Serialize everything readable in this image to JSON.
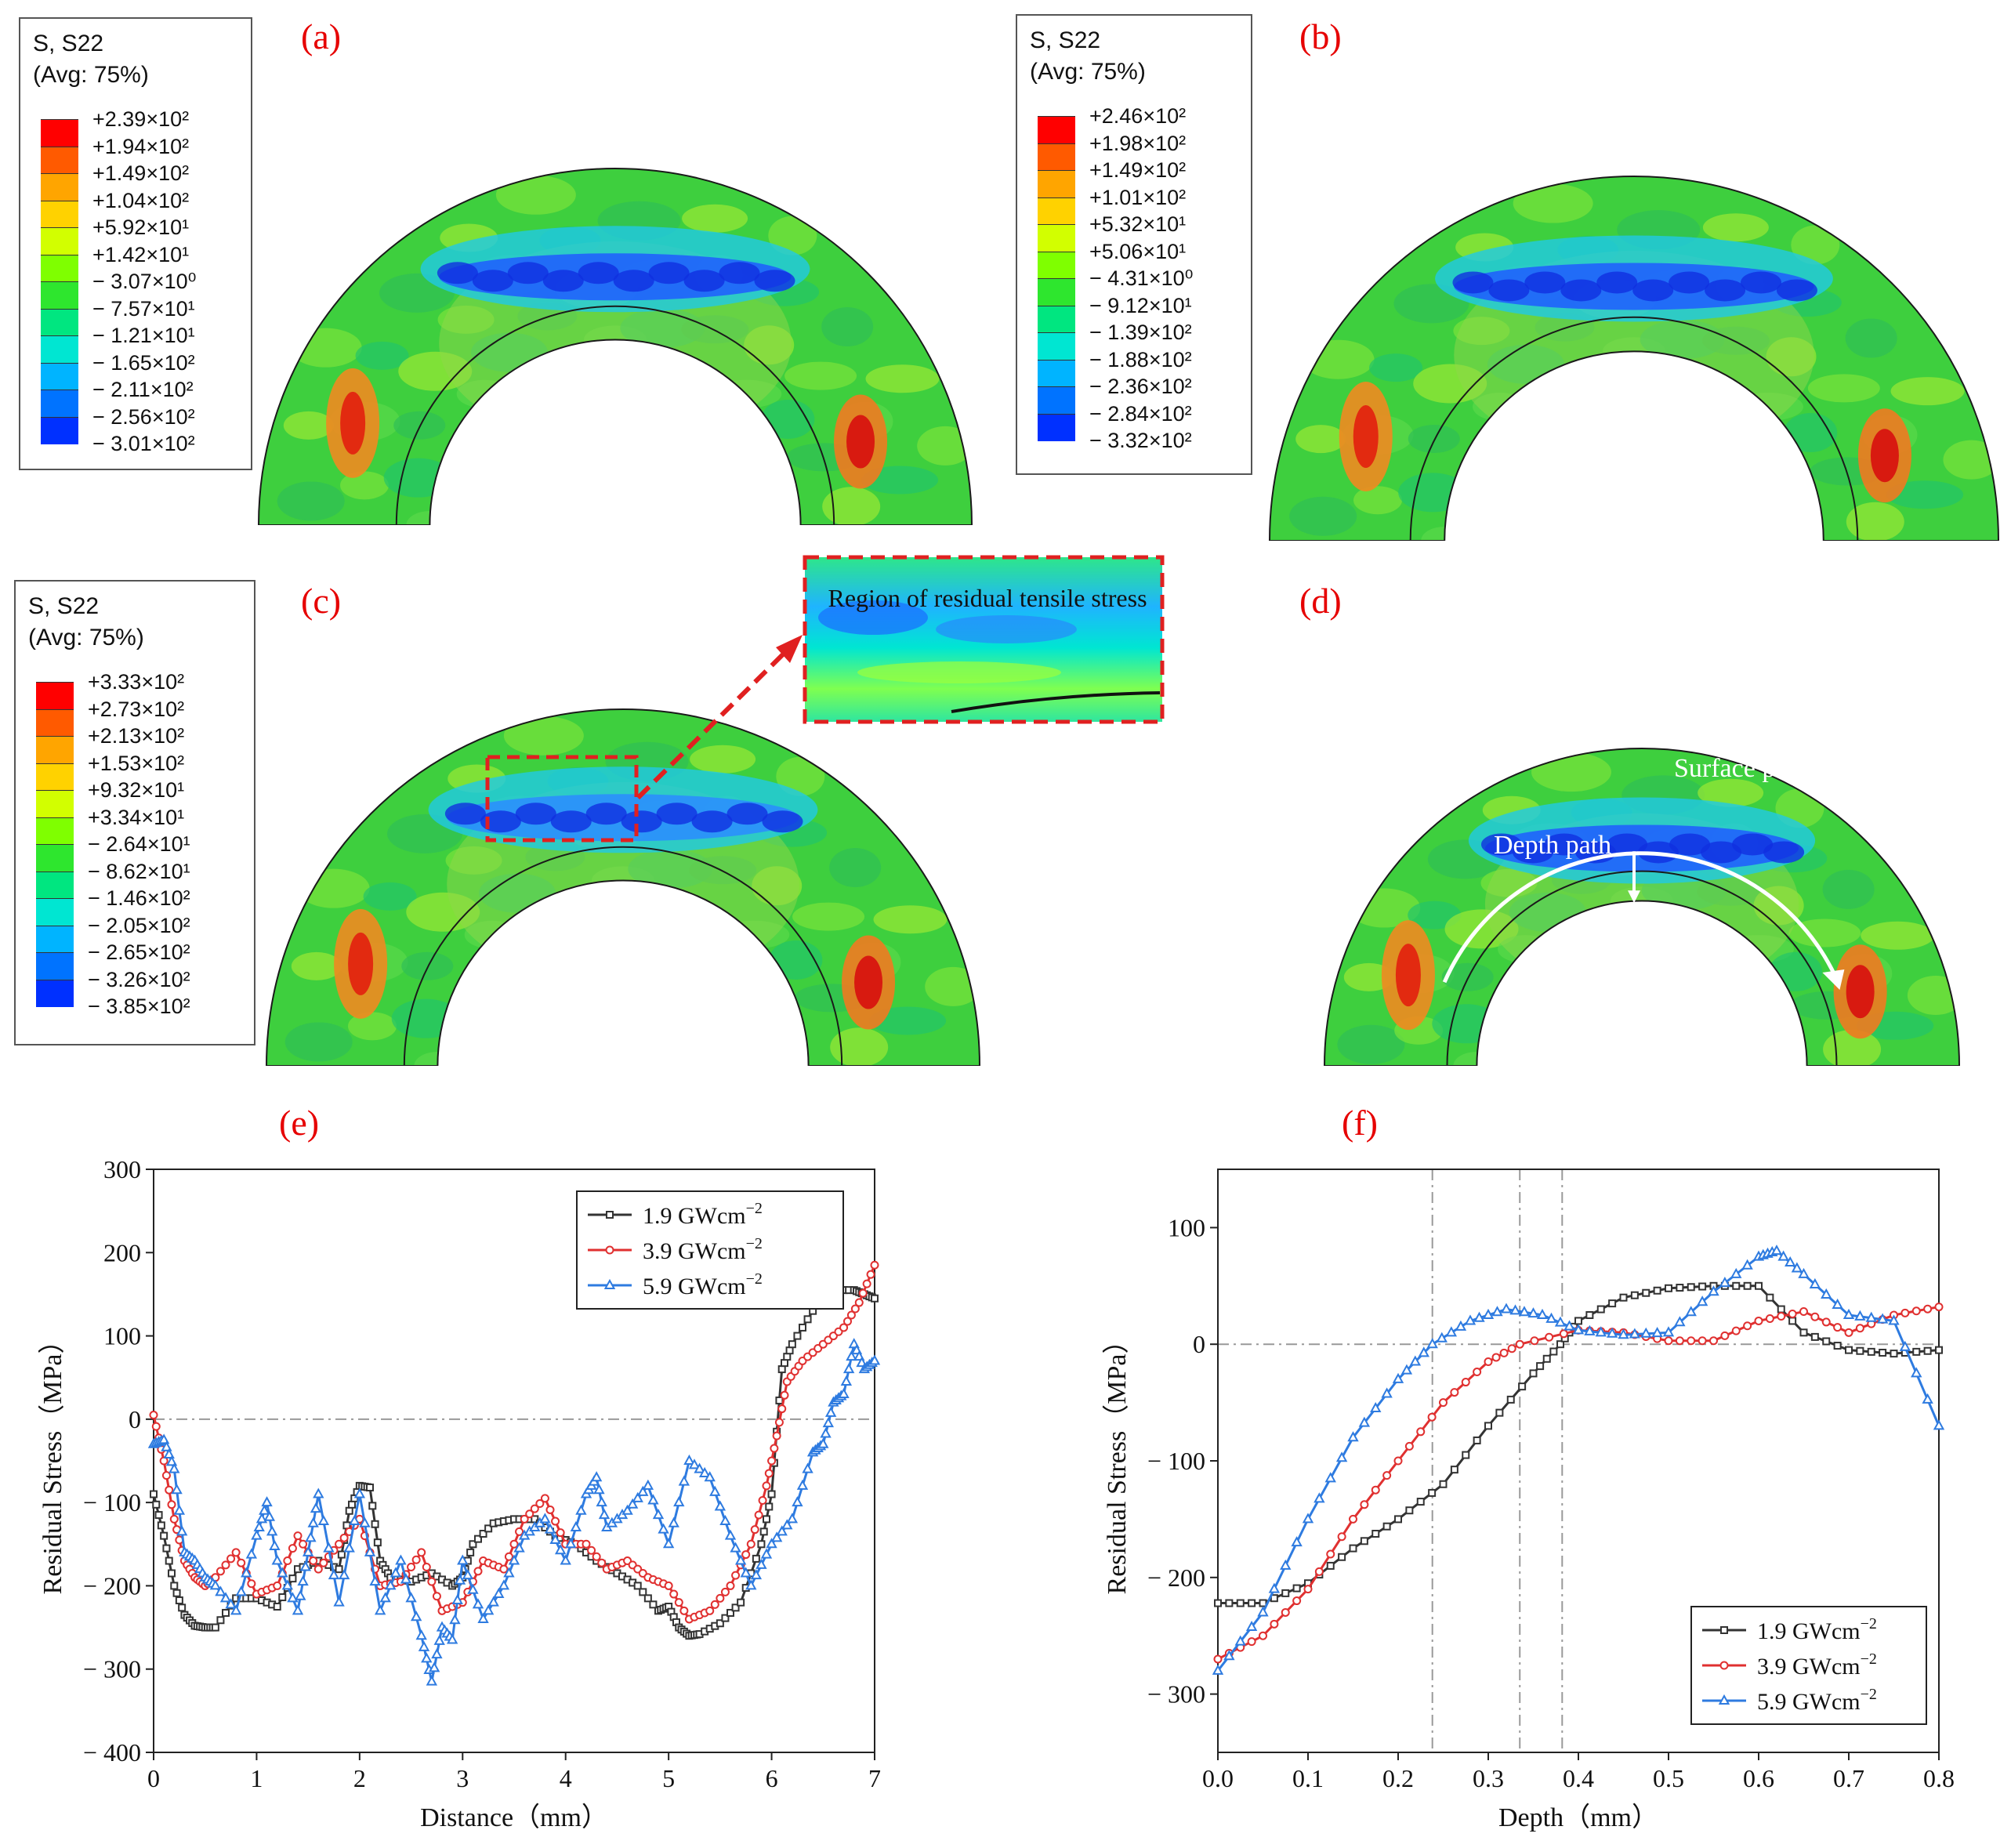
{
  "panel_labels": {
    "a": "(a)",
    "b": "(b)",
    "c": "(c)",
    "d": "(d)",
    "e": "(e)",
    "f": "(f)"
  },
  "legends": [
    {
      "title": "S, S22",
      "subtitle": "(Avg: 75%)",
      "values": [
        "+2.39×10²",
        "+1.94×10²",
        "+1.49×10²",
        "+1.04×10²",
        "+5.92×10¹",
        "+1.42×10¹",
        "− 3.07×10⁰",
        "− 7.57×10¹",
        "− 1.21×10¹",
        "− 1.65×10²",
        "− 2.11×10²",
        "− 2.56×10²",
        "− 3.01×10²"
      ]
    },
    {
      "title": "S, S22",
      "subtitle": "(Avg: 75%)",
      "values": [
        "+2.46×10²",
        "+1.98×10²",
        "+1.49×10²",
        "+1.01×10²",
        "+5.32×10¹",
        "+5.06×10¹",
        "− 4.31×10⁰",
        "− 9.12×10¹",
        "− 1.39×10²",
        "− 1.88×10²",
        "− 2.36×10²",
        "− 2.84×10²",
        "− 3.32×10²"
      ]
    },
    {
      "title": "S, S22",
      "subtitle": "(Avg: 75%)",
      "values": [
        "+3.33×10²",
        "+2.73×10²",
        "+2.13×10²",
        "+1.53×10²",
        "+9.32×10¹",
        "+3.34×10¹",
        "− 2.64×10¹",
        "− 8.62×10¹",
        "− 1.46×10²",
        "− 2.05×10²",
        "− 2.65×10²",
        "− 3.26×10²",
        "− 3.85×10²"
      ]
    }
  ],
  "legend_colors": [
    "#ff0000",
    "#ff5a00",
    "#ffa500",
    "#ffd200",
    "#d2ff00",
    "#7fff00",
    "#2ee62e",
    "#00e680",
    "#00e6d2",
    "#00b4ff",
    "#0073ff",
    "#0030ff",
    "#0000d0"
  ],
  "inset_text": "Region of residual tensile stress",
  "path_labels": {
    "surface": "Surface path",
    "depth": "Depth path"
  },
  "chart_data": [
    {
      "type": "line",
      "panel": "(e)",
      "xlabel": "Distance（mm）",
      "ylabel": "Residual Stress（MPa）",
      "xlim": [
        0,
        7
      ],
      "ylim": [
        -400,
        300
      ],
      "xticks": [
        0,
        1,
        2,
        3,
        4,
        5,
        6,
        7
      ],
      "yticks": [
        -400,
        -300,
        -200,
        -100,
        0,
        100,
        200,
        300
      ],
      "xtick_labels": [
        "0",
        "1",
        "2",
        "3",
        "4",
        "5",
        "6",
        "7"
      ],
      "ytick_labels": [
        "− 400",
        "− 300",
        "− 200",
        "− 100",
        "0",
        "100",
        "200",
        "300"
      ],
      "reference_line": 0,
      "legend": "top-right",
      "series": [
        {
          "name": "1.9 GWcm",
          "sup": "−2",
          "color": "#333333",
          "marker": "square",
          "x": [
            0,
            0.1,
            0.2,
            0.3,
            0.4,
            0.5,
            0.6,
            0.8,
            1.0,
            1.2,
            1.4,
            1.6,
            1.8,
            1.9,
            2.0,
            2.1,
            2.2,
            2.3,
            2.5,
            2.7,
            2.9,
            3.0,
            3.1,
            3.3,
            3.5,
            3.7,
            3.9,
            4.1,
            4.3,
            4.5,
            4.7,
            4.9,
            5.0,
            5.1,
            5.2,
            5.3,
            5.5,
            5.7,
            5.9,
            6.0,
            6.1,
            6.2,
            6.4,
            6.6,
            6.8,
            6.9,
            7.0
          ],
          "y": [
            -90,
            -140,
            -200,
            -235,
            -248,
            -250,
            -250,
            -215,
            -215,
            -225,
            -180,
            -170,
            -180,
            -110,
            -80,
            -82,
            -170,
            -190,
            -195,
            -185,
            -200,
            -190,
            -150,
            -125,
            -120,
            -120,
            -140,
            -150,
            -170,
            -185,
            -200,
            -230,
            -225,
            -250,
            -260,
            -258,
            -245,
            -220,
            -150,
            -90,
            60,
            90,
            130,
            155,
            155,
            150,
            145
          ]
        },
        {
          "name": "3.9 GWcm",
          "sup": "−2",
          "color": "#e03030",
          "marker": "circle",
          "x": [
            0,
            0.1,
            0.2,
            0.3,
            0.4,
            0.5,
            0.6,
            0.8,
            1.0,
            1.2,
            1.4,
            1.6,
            1.8,
            2.0,
            2.2,
            2.4,
            2.6,
            2.8,
            3.0,
            3.2,
            3.4,
            3.6,
            3.8,
            4.0,
            4.2,
            4.4,
            4.6,
            4.8,
            5.0,
            5.2,
            5.4,
            5.6,
            5.8,
            5.95,
            6.05,
            6.15,
            6.3,
            6.5,
            6.7,
            6.85,
            7.0
          ],
          "y": [
            5,
            -50,
            -120,
            -170,
            -190,
            -200,
            -190,
            -160,
            -210,
            -200,
            -140,
            -180,
            -150,
            -120,
            -200,
            -195,
            -160,
            -230,
            -220,
            -170,
            -180,
            -120,
            -95,
            -150,
            -150,
            -180,
            -170,
            -190,
            -200,
            -240,
            -230,
            -200,
            -150,
            -80,
            -20,
            45,
            70,
            90,
            110,
            140,
            185
          ]
        },
        {
          "name": "5.9 GWcm",
          "sup": "−2",
          "color": "#2e7be0",
          "marker": "triangle",
          "x": [
            0,
            0.1,
            0.2,
            0.3,
            0.4,
            0.5,
            0.6,
            0.8,
            1.0,
            1.1,
            1.2,
            1.4,
            1.5,
            1.6,
            1.8,
            2.0,
            2.2,
            2.4,
            2.6,
            2.7,
            2.8,
            2.9,
            3.0,
            3.2,
            3.4,
            3.6,
            3.8,
            4.0,
            4.2,
            4.3,
            4.4,
            4.6,
            4.8,
            5.0,
            5.2,
            5.4,
            5.6,
            5.8,
            6.0,
            6.2,
            6.4,
            6.5,
            6.6,
            6.7,
            6.8,
            6.9,
            7.0
          ],
          "y": [
            -30,
            -25,
            -60,
            -160,
            -170,
            -190,
            -200,
            -230,
            -140,
            -100,
            -170,
            -230,
            -160,
            -90,
            -220,
            -90,
            -230,
            -170,
            -260,
            -315,
            -250,
            -265,
            -170,
            -240,
            -200,
            -140,
            -120,
            -170,
            -90,
            -70,
            -130,
            -110,
            -80,
            -150,
            -50,
            -70,
            -140,
            -200,
            -150,
            -120,
            -40,
            -30,
            20,
            30,
            90,
            60,
            70
          ]
        }
      ]
    },
    {
      "type": "line",
      "panel": "(f)",
      "xlabel": "Depth（mm）",
      "ylabel": "Residual Stress（MPa）",
      "xlim": [
        0,
        0.8
      ],
      "ylim": [
        -350,
        150
      ],
      "xticks": [
        0,
        0.1,
        0.2,
        0.3,
        0.4,
        0.5,
        0.6,
        0.7,
        0.8
      ],
      "yticks": [
        -300,
        -200,
        -100,
        0,
        100
      ],
      "xtick_labels": [
        "0.0",
        "0.1",
        "0.2",
        "0.3",
        "0.4",
        "0.5",
        "0.6",
        "0.7",
        "0.8"
      ],
      "ytick_labels": [
        "− 300",
        "− 200",
        "− 100",
        "0",
        "100"
      ],
      "reference_line": 0,
      "vertical_lines": [
        0.238,
        0.335,
        0.382
      ],
      "legend": "bottom-right",
      "series": [
        {
          "name": "1.9 GWcm",
          "sup": "−2",
          "color": "#333333",
          "marker": "square",
          "x": [
            0,
            0.05,
            0.1,
            0.15,
            0.2,
            0.25,
            0.3,
            0.35,
            0.38,
            0.4,
            0.45,
            0.5,
            0.55,
            0.6,
            0.65,
            0.7,
            0.75,
            0.8
          ],
          "y": [
            -222,
            -222,
            -205,
            -175,
            -150,
            -120,
            -70,
            -25,
            0,
            20,
            40,
            48,
            50,
            50,
            10,
            -5,
            -8,
            -5
          ]
        },
        {
          "name": "3.9 GWcm",
          "sup": "−2",
          "color": "#e03030",
          "marker": "circle",
          "x": [
            0,
            0.05,
            0.1,
            0.15,
            0.2,
            0.25,
            0.3,
            0.335,
            0.4,
            0.45,
            0.5,
            0.55,
            0.6,
            0.65,
            0.7,
            0.75,
            0.8
          ],
          "y": [
            -270,
            -250,
            -210,
            -150,
            -100,
            -50,
            -15,
            0,
            12,
            10,
            3,
            3,
            20,
            28,
            10,
            25,
            32
          ]
        },
        {
          "name": "5.9 GWcm",
          "sup": "−2",
          "color": "#2e7be0",
          "marker": "triangle",
          "x": [
            0,
            0.05,
            0.1,
            0.15,
            0.2,
            0.238,
            0.28,
            0.32,
            0.36,
            0.4,
            0.45,
            0.5,
            0.55,
            0.6,
            0.62,
            0.65,
            0.7,
            0.75,
            0.8
          ],
          "y": [
            -280,
            -230,
            -150,
            -80,
            -30,
            0,
            20,
            30,
            25,
            12,
            8,
            10,
            45,
            75,
            80,
            60,
            25,
            20,
            -70
          ]
        }
      ]
    }
  ]
}
